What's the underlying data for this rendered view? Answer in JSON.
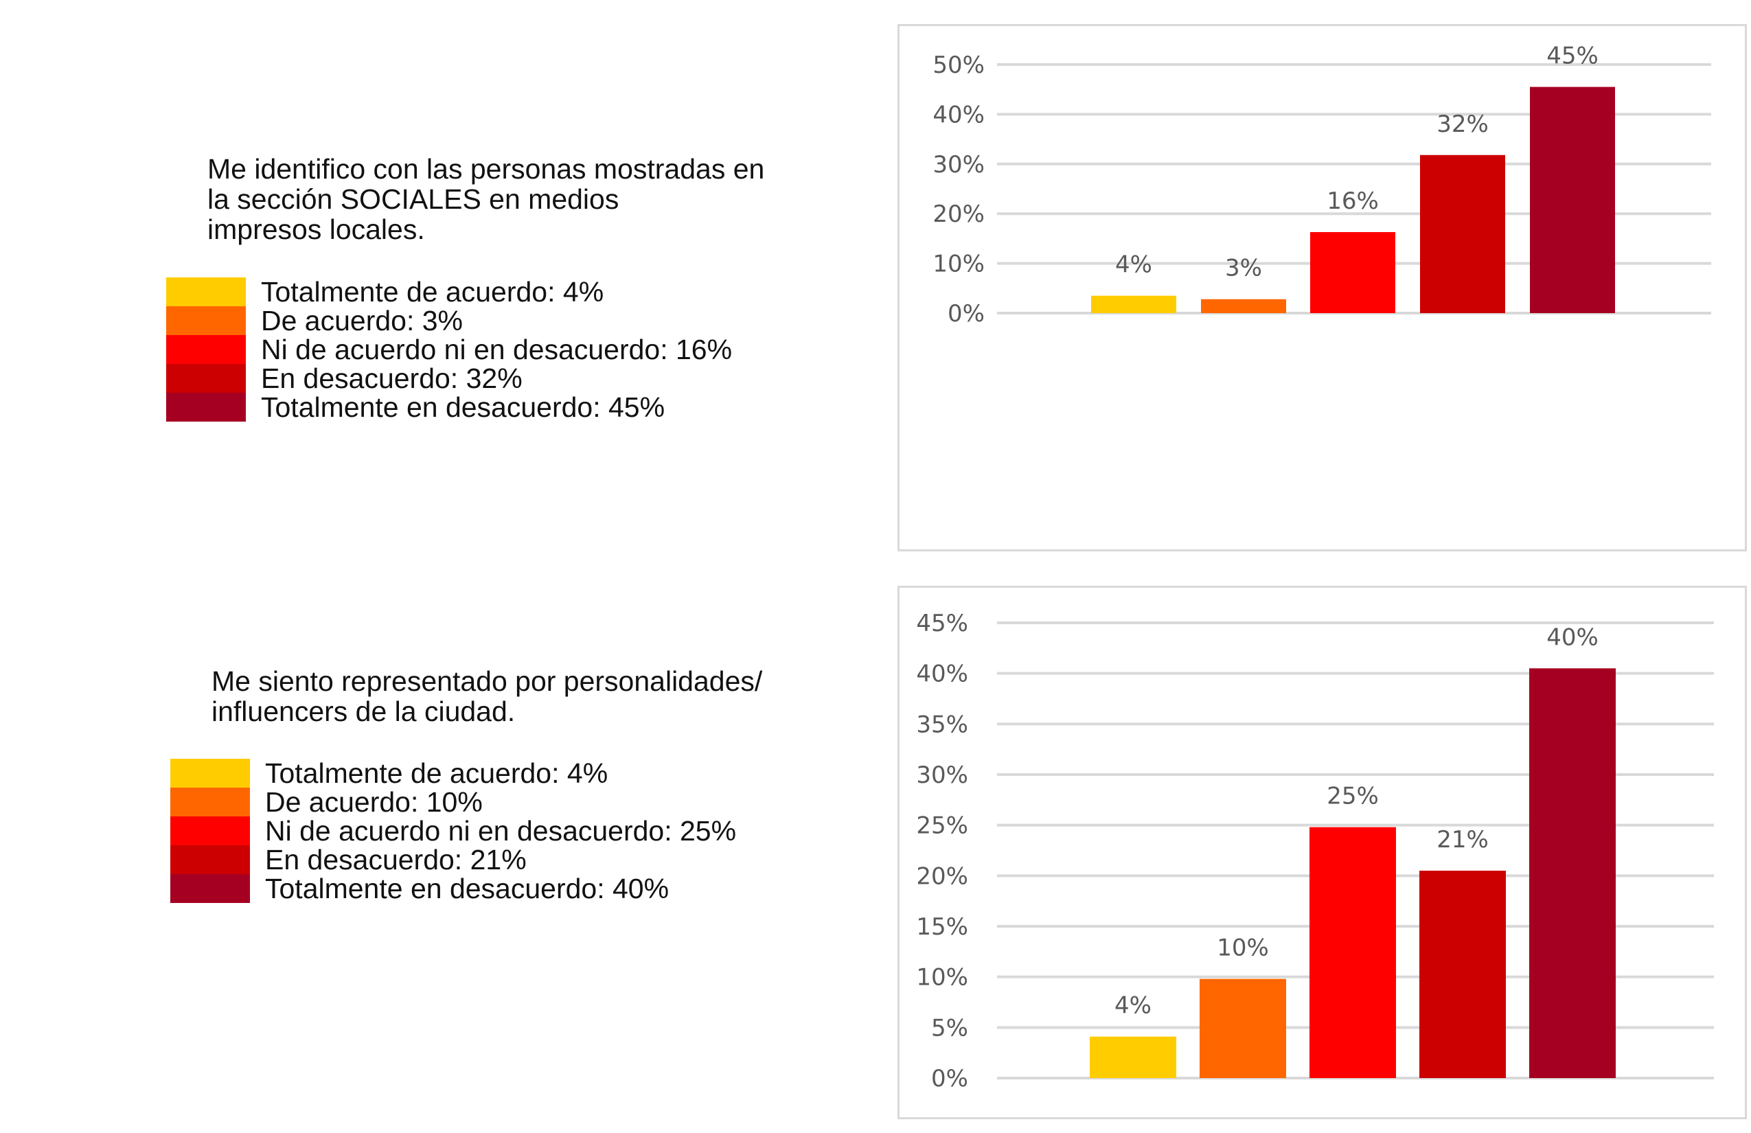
{
  "chart_data": [
    {
      "type": "bar",
      "title": "Me identifico con las personas mostradas en\nla sección SOCIALES en medios\nimpresos locales.",
      "categories": [
        "Totalmente de acuerdo",
        "De acuerdo",
        "Ni de acuerdo ni en desacuerdo",
        "En desacuerdo",
        "Totalmente en desacuerdo"
      ],
      "values": [
        3.5,
        2.8,
        16.3,
        31.8,
        45.5
      ],
      "data_labels": [
        "4%",
        "3%",
        "16%",
        "32%",
        "45%"
      ],
      "colors": [
        "#FFCC00",
        "#FF6600",
        "#FF0000",
        "#CC0000",
        "#A50021"
      ],
      "legend_labels": [
        "Totalmente de acuerdo: 4%",
        "De acuerdo: 3%",
        "Ni de acuerdo ni en desacuerdo: 16%",
        "En desacuerdo: 32%",
        "Totalmente en desacuerdo: 45%"
      ],
      "ylim": [
        0,
        50
      ],
      "yticks": [
        0,
        10,
        20,
        30,
        40,
        50
      ],
      "ytick_labels": [
        "0%",
        "10%",
        "20%",
        "30%",
        "40%",
        "50%"
      ],
      "grid": true,
      "xlabel": "",
      "ylabel": ""
    },
    {
      "type": "bar",
      "title": "Me siento representado por personalidades/\ninfluencers de la ciudad.",
      "categories": [
        "Totalmente de acuerdo",
        "De acuerdo",
        "Ni de acuerdo ni en desacuerdo",
        "En desacuerdo",
        "Totalmente en desacuerdo"
      ],
      "values": [
        4.1,
        9.8,
        24.8,
        20.5,
        40.5
      ],
      "data_labels": [
        "4%",
        "10%",
        "25%",
        "21%",
        "40%"
      ],
      "colors": [
        "#FFCC00",
        "#FF6600",
        "#FF0000",
        "#CC0000",
        "#A50021"
      ],
      "legend_labels": [
        "Totalmente de acuerdo: 4%",
        "De acuerdo: 10%",
        "Ni de acuerdo ni en desacuerdo: 25%",
        "En desacuerdo: 21%",
        "Totalmente en desacuerdo: 40%"
      ],
      "ylim": [
        0,
        45
      ],
      "yticks": [
        0,
        5,
        10,
        15,
        20,
        25,
        30,
        35,
        40,
        45
      ],
      "ytick_labels": [
        "0%",
        "5%",
        "10%",
        "15%",
        "20%",
        "25%",
        "30%",
        "35%",
        "40%",
        "45%"
      ],
      "grid": true,
      "xlabel": "",
      "ylabel": ""
    }
  ]
}
